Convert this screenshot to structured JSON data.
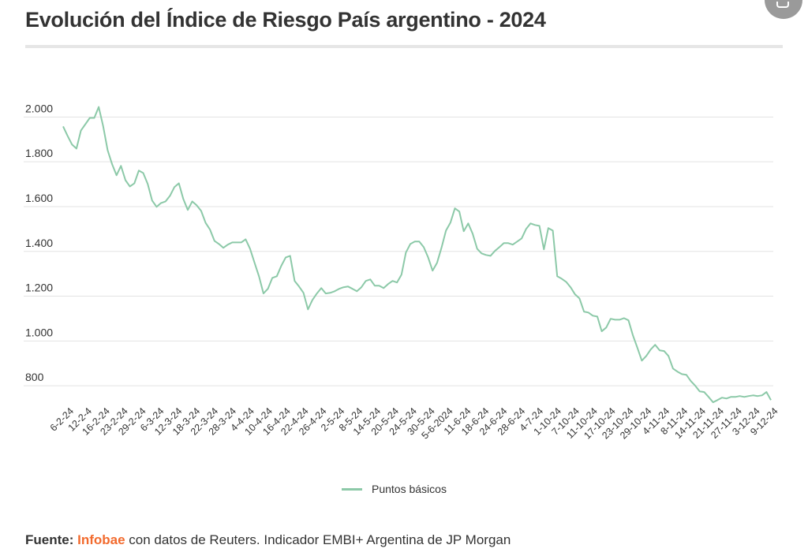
{
  "header": {
    "title": "Evolución del Índice de Riesgo País argentino - 2024",
    "corner_icon": "monitor-icon"
  },
  "legend": {
    "label": "Puntos básicos"
  },
  "footer": {
    "prefix": "Fuente:",
    "source": "Infobae",
    "text": " con datos de Reuters. Indicador EMBI+ Argentina de JP Morgan"
  },
  "colors": {
    "line": "#8cc9a8",
    "grid": "#e3e3e3",
    "source": "#f26a2d"
  },
  "chart_data": {
    "type": "line",
    "title": "Evolución del Índice de Riesgo País argentino - 2024",
    "xlabel": "",
    "ylabel": "",
    "ylim": [
      730,
      2100
    ],
    "yticks": [
      800,
      1000,
      1200,
      1400,
      1600,
      1800,
      2000
    ],
    "ytick_labels": [
      "800",
      "1.000",
      "1.200",
      "1.400",
      "1.600",
      "1.800",
      "2.000"
    ],
    "grid": true,
    "legend_position": "bottom-center",
    "x_tick_labels": [
      "6-2-24",
      "12-2-4",
      "16-2-24",
      "23-2-24",
      "29-2-24",
      "6-3-24",
      "12-3-24",
      "18-3-24",
      "22-3-24",
      "28-3-24",
      "4-4-24",
      "10-4-24",
      "16-4-24",
      "22-4-24",
      "26-4-24",
      "2-5-24",
      "8-5-24",
      "14-5-24",
      "20-5-24",
      "24-5-24",
      "30-5-24",
      "5-6-2024",
      "11-6-24",
      "18-6-24",
      "24-6-24",
      "28-6-24",
      "4-7-24",
      "1-10-24",
      "7-10-24",
      "11-10-24",
      "17-10-24",
      "23-10-24",
      "29-10-24",
      "4-11-24",
      "8-11-24",
      "14-11-24",
      "21-11-24",
      "27-11-24",
      "3-12-24",
      "9-12-24"
    ],
    "series": [
      {
        "name": "Puntos básicos",
        "values": [
          1958,
          1916,
          1877,
          1859,
          1940,
          1968,
          1996,
          1996,
          2045,
          1958,
          1852,
          1789,
          1740,
          1782,
          1718,
          1690,
          1704,
          1761,
          1750,
          1701,
          1627,
          1599,
          1616,
          1623,
          1648,
          1687,
          1704,
          1634,
          1585,
          1623,
          1606,
          1581,
          1528,
          1497,
          1447,
          1433,
          1416,
          1430,
          1440,
          1440,
          1440,
          1454,
          1412,
          1349,
          1289,
          1212,
          1233,
          1282,
          1289,
          1335,
          1373,
          1380,
          1268,
          1243,
          1215,
          1141,
          1183,
          1212,
          1236,
          1212,
          1215,
          1222,
          1233,
          1240,
          1243,
          1233,
          1222,
          1240,
          1268,
          1275,
          1247,
          1247,
          1236,
          1254,
          1268,
          1261,
          1296,
          1395,
          1433,
          1444,
          1444,
          1419,
          1373,
          1314,
          1349,
          1416,
          1493,
          1528,
          1592,
          1578,
          1490,
          1525,
          1479,
          1412,
          1391,
          1384,
          1380,
          1402,
          1419,
          1437,
          1437,
          1430,
          1444,
          1458,
          1500,
          1525,
          1518,
          1514,
          1409,
          1504,
          1493,
          1289,
          1278,
          1264,
          1240,
          1208,
          1190,
          1131,
          1127,
          1113,
          1109,
          1043,
          1060,
          1099,
          1095,
          1095,
          1102,
          1092,
          1025,
          969,
          912,
          933,
          962,
          983,
          958,
          955,
          933,
          877,
          863,
          852,
          849,
          821,
          800,
          775,
          772,
          750,
          726,
          736,
          747,
          743,
          750,
          750,
          754,
          750,
          754,
          757,
          754,
          757,
          772,
          736
        ]
      }
    ]
  }
}
